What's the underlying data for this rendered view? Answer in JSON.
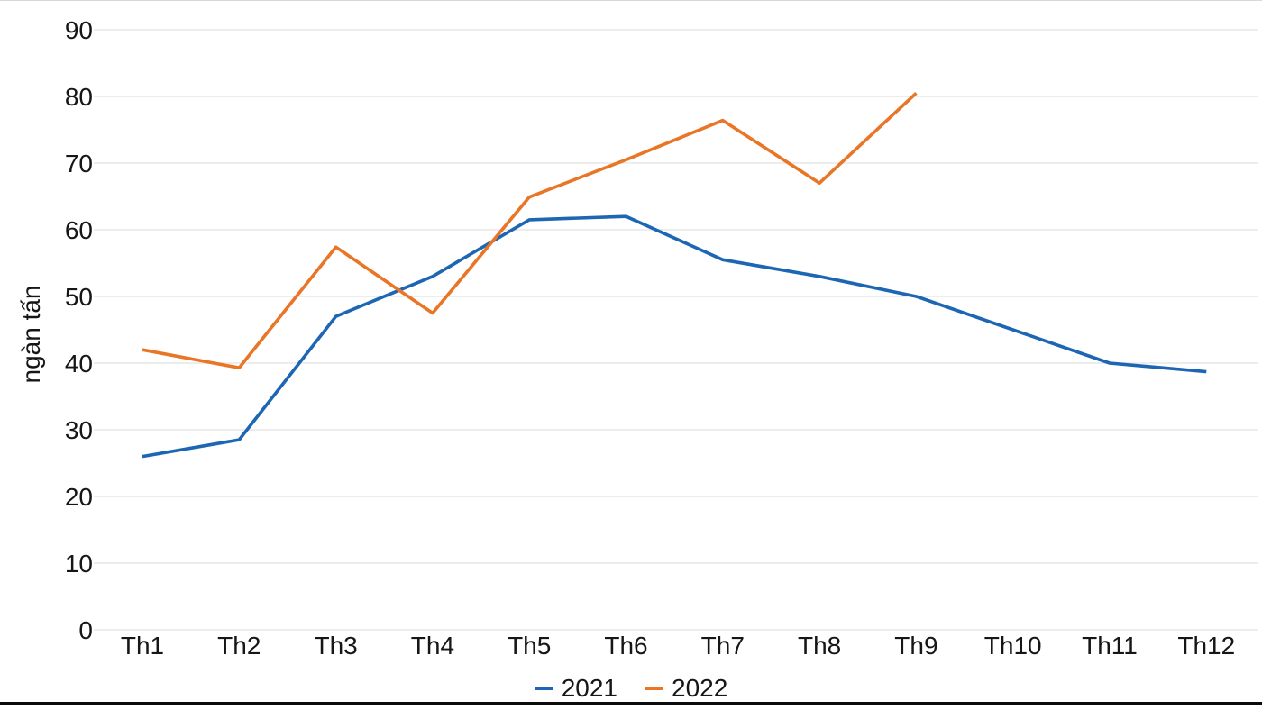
{
  "chart_data": {
    "type": "line",
    "title": "",
    "xlabel": "",
    "ylabel": "ngàn tấn",
    "ylim": [
      0,
      90
    ],
    "ytick_step": 10,
    "grid": "horizontal",
    "grid_color": "#e7e7e7",
    "legend_position": "bottom-center",
    "categories": [
      "Th1",
      "Th2",
      "Th3",
      "Th4",
      "Th5",
      "Th6",
      "Th7",
      "Th8",
      "Th9",
      "Th10",
      "Th11",
      "Th12"
    ],
    "series": [
      {
        "name": "2021",
        "color": "#1c66b3",
        "values": [
          26,
          28.5,
          47,
          53,
          61.5,
          62,
          55.5,
          53,
          50,
          45,
          40,
          38.7
        ]
      },
      {
        "name": "2022",
        "color": "#e97526",
        "values": [
          42,
          39.3,
          57.4,
          47.5,
          64.9,
          70.5,
          76.4,
          67,
          80.5
        ]
      }
    ]
  }
}
